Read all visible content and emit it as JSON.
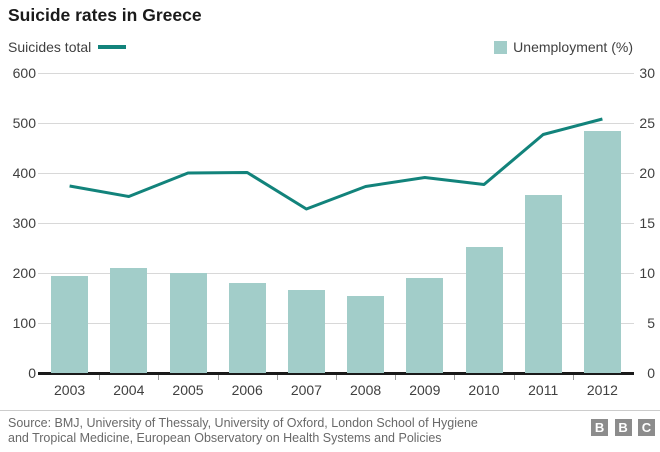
{
  "title": "Suicide rates in Greece",
  "legend": {
    "line_label": "Suicides total",
    "bar_label": "Unemployment (%)"
  },
  "colors": {
    "line": "#12837b",
    "bar": "#a2cdc9",
    "grid": "#d8d8d8",
    "baseline": "#1a1a1a",
    "axis_text": "#404040",
    "source_text": "#696969",
    "logo_gray": "#8c8c8c"
  },
  "chart_data": {
    "type": "bar",
    "subtype": "combo-bar-line",
    "title": "Suicide rates in Greece",
    "categories": [
      "2003",
      "2004",
      "2005",
      "2006",
      "2007",
      "2008",
      "2009",
      "2010",
      "2011",
      "2012"
    ],
    "series": [
      {
        "name": "Suicides total",
        "type": "line",
        "axis": "left",
        "values": [
          374,
          353,
          400,
          401,
          328,
          373,
          391,
          377,
          477,
          508
        ]
      },
      {
        "name": "Unemployment (%)",
        "type": "bar",
        "axis": "right",
        "values": [
          9.7,
          10.5,
          10.0,
          9.0,
          8.3,
          7.7,
          9.5,
          12.6,
          17.8,
          24.2
        ]
      }
    ],
    "left_axis": {
      "ticks": [
        0,
        100,
        200,
        300,
        400,
        500,
        600
      ],
      "range": [
        0,
        600
      ]
    },
    "right_axis": {
      "ticks": [
        0,
        5,
        10,
        15,
        20,
        25,
        30
      ],
      "range": [
        0,
        30
      ]
    },
    "grid": true,
    "legend_position": "top"
  },
  "footer": {
    "source_line1": "Source: BMJ, University of Thessaly, University of Oxford, London School of Hygiene",
    "source_line2": "and Tropical Medicine, European Observatory on Health Systems and Policies",
    "logo_letters": [
      "B",
      "B",
      "C"
    ]
  }
}
